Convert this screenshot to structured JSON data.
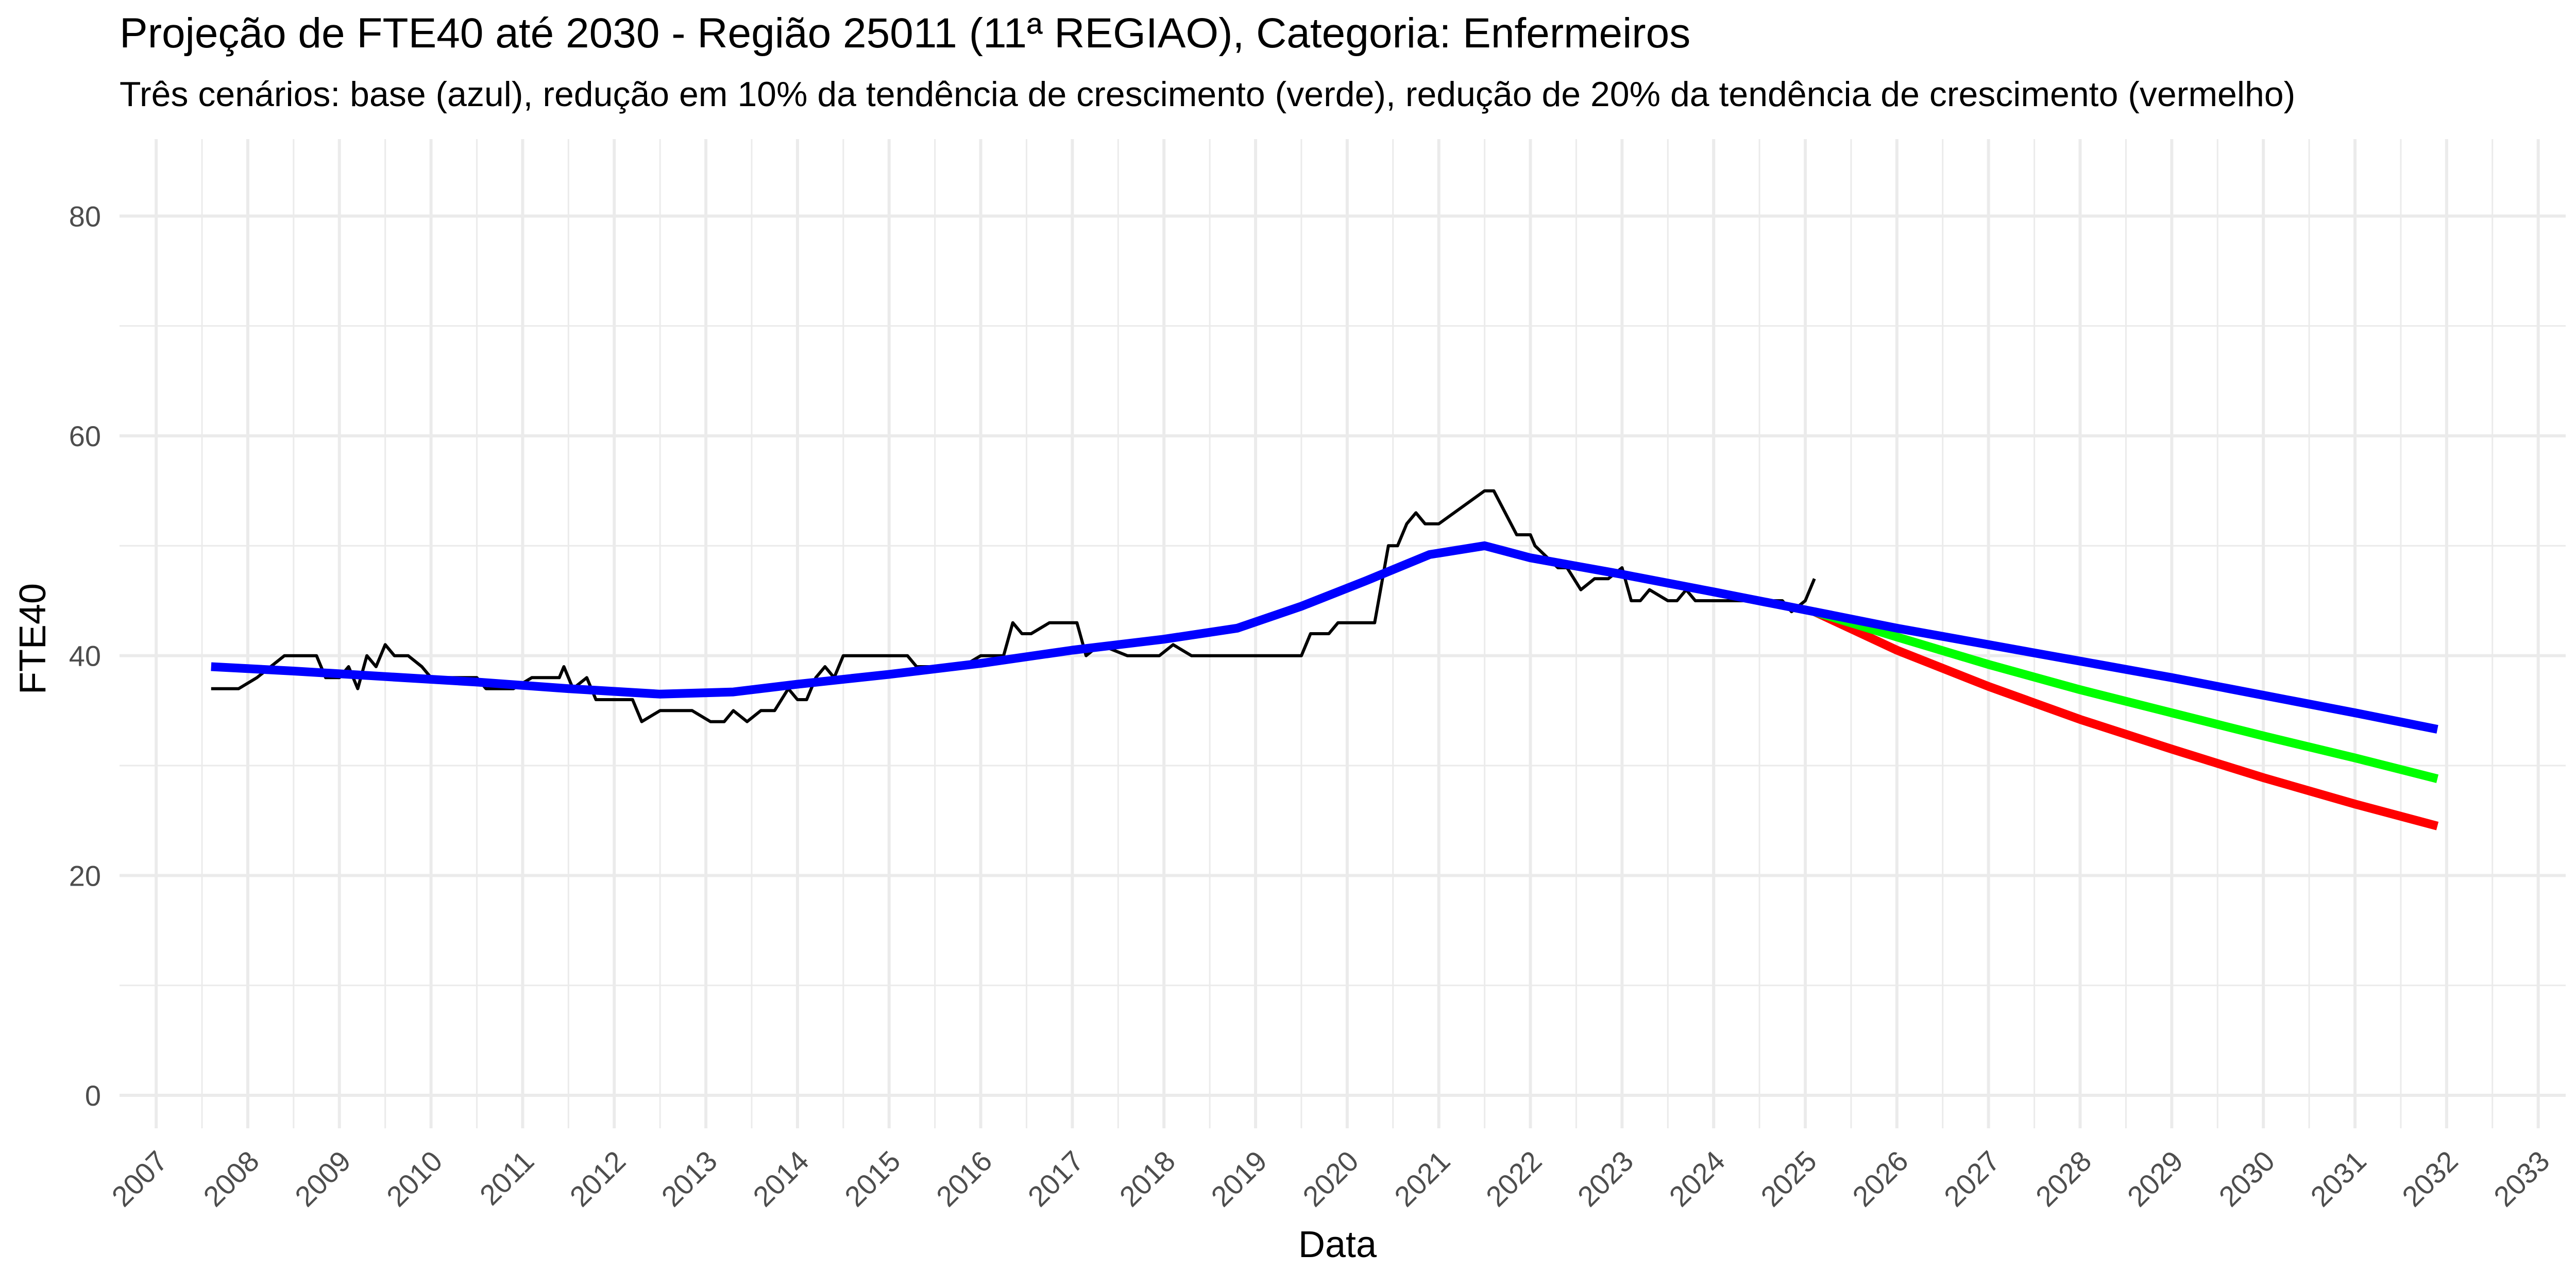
{
  "chart_data": {
    "type": "line",
    "title": "Projeção de FTE40 até 2030 - Região 25011 (11ª REGIAO), Categoria: Enfermeiros",
    "subtitle": "Três cenários: base (azul), redução em 10% da tendência de crescimento (verde), redução de 20% da tendência de crescimento (vermelho)",
    "xlabel": "Data",
    "ylabel": "FTE40",
    "xlim": [
      2006.6,
      2033.3
    ],
    "ylim": [
      -3,
      87
    ],
    "x_ticks": [
      "2007",
      "2008",
      "2009",
      "2010",
      "2011",
      "2012",
      "2013",
      "2014",
      "2015",
      "2016",
      "2017",
      "2018",
      "2019",
      "2020",
      "2021",
      "2022",
      "2023",
      "2024",
      "2025",
      "2026",
      "2027",
      "2028",
      "2029",
      "2030",
      "2031",
      "2032",
      "2033"
    ],
    "y_ticks": [
      "0",
      "20",
      "40",
      "60",
      "80"
    ],
    "grid": true,
    "colors": {
      "observed": "#000000",
      "base": "#0000ff",
      "reduction_10": "#00ff00",
      "reduction_20": "#ff0000",
      "grid": "#ebebeb",
      "text": "#4d4d4d"
    },
    "series": [
      {
        "key": "observed",
        "x": [
          2007.6,
          2007.9,
          2008.1,
          2008.25,
          2008.4,
          2008.75,
          2008.85,
          2009.0,
          2009.1,
          2009.2,
          2009.3,
          2009.4,
          2009.5,
          2009.6,
          2009.75,
          2009.9,
          2010.0,
          2010.5,
          2010.6,
          2010.9,
          2011.1,
          2011.15,
          2011.3,
          2011.4,
          2011.45,
          2011.55,
          2011.7,
          2011.8,
          2012.0,
          2012.1,
          2012.2,
          2012.3,
          2012.5,
          2012.7,
          2012.85,
          2013.05,
          2013.2,
          2013.3,
          2013.45,
          2013.6,
          2013.75,
          2013.9,
          2014.0,
          2014.1,
          2014.2,
          2014.3,
          2014.4,
          2014.5,
          2014.6,
          2015.2,
          2015.3,
          2015.55,
          2015.8,
          2016.0,
          2016.15,
          2016.25,
          2016.35,
          2016.45,
          2016.55,
          2016.75,
          2016.95,
          2017.05,
          2017.15,
          2017.3,
          2017.6,
          2017.85,
          2017.95,
          2018.1,
          2018.3,
          2018.8,
          2019.0,
          2019.1,
          2019.5,
          2019.6,
          2019.7,
          2019.8,
          2019.9,
          2020.3,
          2020.45,
          2020.55,
          2020.65,
          2020.75,
          2020.85,
          2021.0,
          2021.5,
          2021.6,
          2021.85,
          2022.0,
          2022.05,
          2022.3,
          2022.4,
          2022.55,
          2022.7,
          2022.85,
          2023.0,
          2023.1,
          2023.2,
          2023.3,
          2023.5,
          2023.6,
          2023.7,
          2023.8,
          2024.7,
          2024.75,
          2024.85,
          2025.0,
          2025.1
        ],
        "values": [
          37,
          37,
          38,
          39,
          40,
          40,
          38,
          38,
          39,
          37,
          40,
          39,
          41,
          40,
          40,
          39,
          38,
          38,
          37,
          37,
          38,
          38,
          38,
          38,
          39,
          37,
          38,
          36,
          36,
          36,
          36,
          34,
          35,
          35,
          35,
          34,
          34,
          35,
          34,
          35,
          35,
          37,
          36,
          36,
          38,
          39,
          38,
          40,
          40,
          40,
          39,
          39,
          39,
          40,
          40,
          40,
          43,
          42,
          42,
          43,
          43,
          43,
          40,
          41,
          40,
          40,
          40,
          41,
          40,
          40,
          40,
          40,
          40,
          42,
          42,
          42,
          43,
          43,
          50,
          50,
          52,
          53,
          52,
          52,
          55,
          55,
          51,
          51,
          50,
          48,
          48,
          46,
          47,
          47,
          48,
          45,
          45,
          46,
          45,
          45,
          46,
          45,
          45,
          45,
          44,
          45,
          47
        ]
      },
      {
        "key": "base",
        "x": [
          2007.6,
          2008.5,
          2009.5,
          2010.5,
          2011.5,
          2012.5,
          2013.3,
          2014.0,
          2015.0,
          2016.0,
          2017.0,
          2018.0,
          2018.8,
          2019.5,
          2020.2,
          2020.9,
          2021.5,
          2022.0,
          2023.0,
          2024.0,
          2025.1,
          2026.0,
          2027.0,
          2028.0,
          2029.0,
          2030.0,
          2031.0,
          2031.9
        ],
        "values": [
          39,
          38.6,
          38.1,
          37.6,
          37.0,
          36.5,
          36.7,
          37.4,
          38.3,
          39.3,
          40.5,
          41.5,
          42.5,
          44.5,
          46.8,
          49.2,
          50.0,
          48.9,
          47.4,
          45.8,
          44.0,
          42.5,
          41.0,
          39.5,
          38.0,
          36.4,
          34.8,
          33.3
        ]
      },
      {
        "key": "reduction_10",
        "x": [
          2025.1,
          2026.0,
          2027.0,
          2028.0,
          2029.0,
          2030.0,
          2031.0,
          2031.9
        ],
        "values": [
          44.0,
          41.7,
          39.2,
          36.9,
          34.8,
          32.7,
          30.7,
          28.8
        ]
      },
      {
        "key": "reduction_20",
        "x": [
          2025.1,
          2026.0,
          2027.0,
          2028.0,
          2029.0,
          2030.0,
          2031.0,
          2031.9
        ],
        "values": [
          44.0,
          40.5,
          37.2,
          34.2,
          31.5,
          28.9,
          26.5,
          24.5
        ]
      }
    ]
  }
}
